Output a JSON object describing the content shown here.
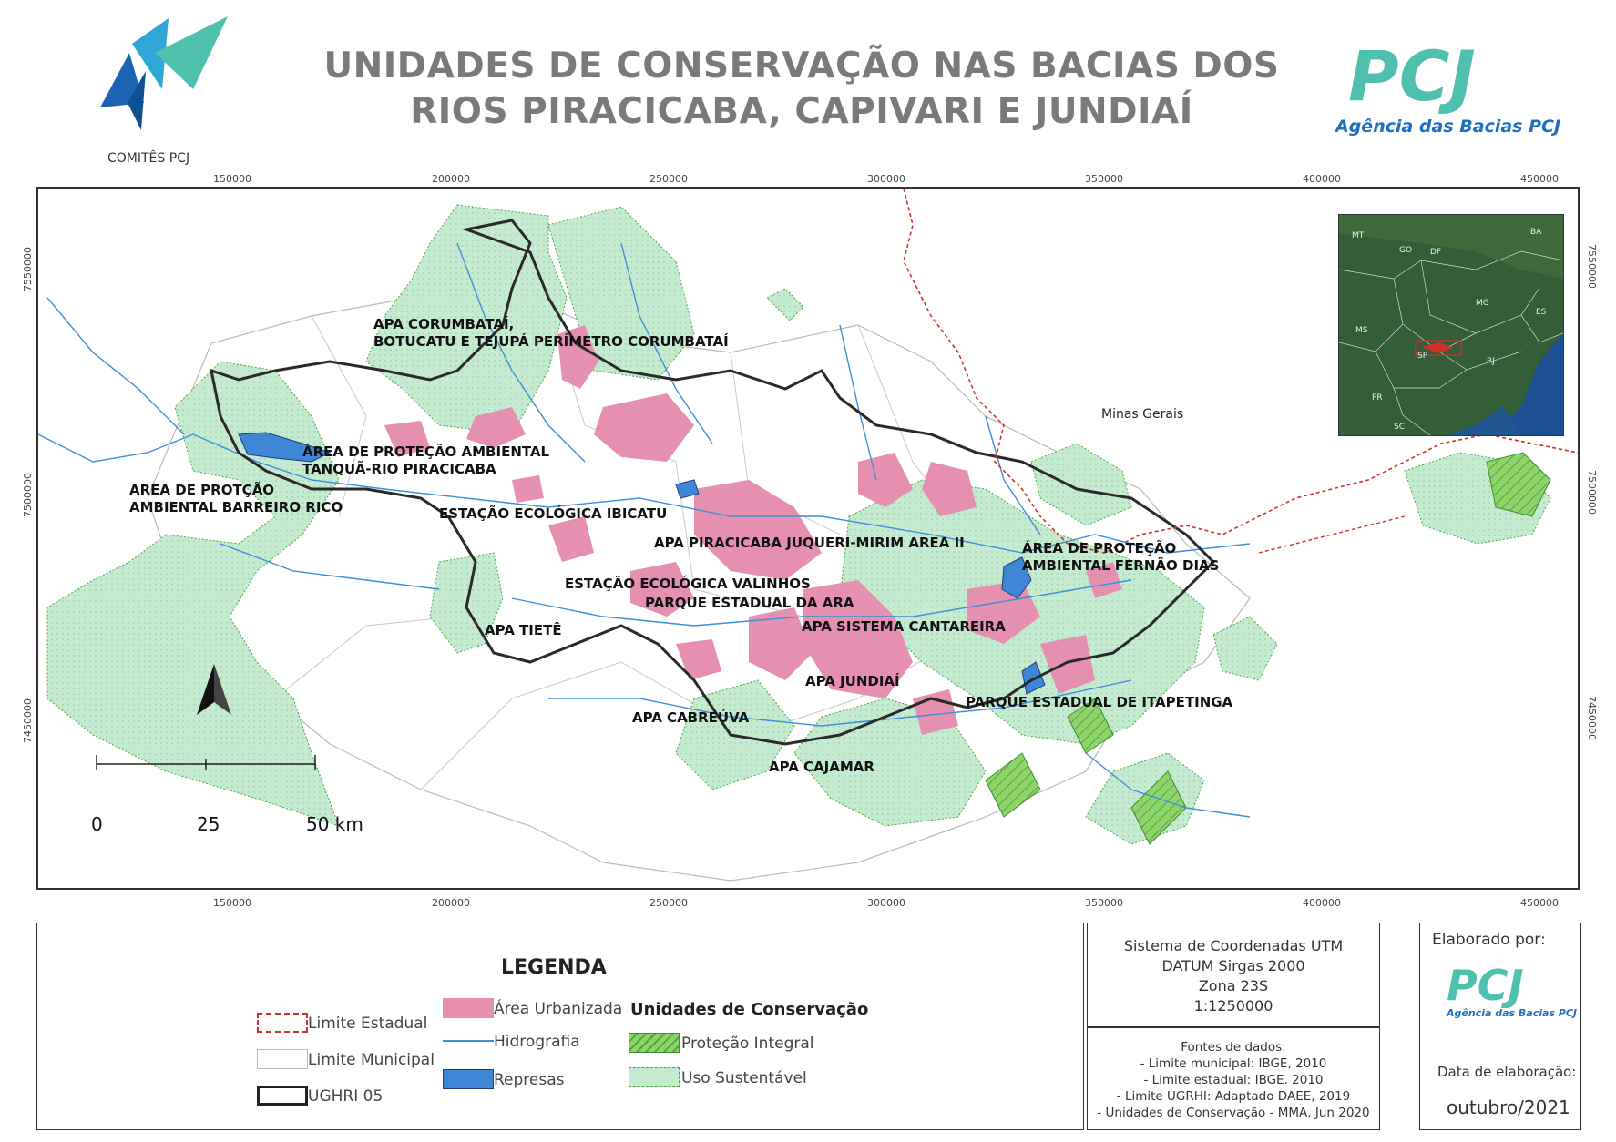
{
  "header": {
    "title_line1": "UNIDADES DE CONSERVAÇÃO NAS BACIAS DOS",
    "title_line2": "RIOS PIRACICABA, CAPIVARI E JUNDIAÍ",
    "left_logo_caption": "COMITÊS PCJ",
    "right_logo_text": "PCJ",
    "right_logo_caption": "Agência das Bacias PCJ"
  },
  "axes": {
    "x_ticks": [
      "150000",
      "200000",
      "250000",
      "300000",
      "350000",
      "400000",
      "450000"
    ],
    "y_ticks": [
      "7550000",
      "7500000",
      "7450000"
    ]
  },
  "map": {
    "uc_labels": [
      {
        "line1": "APA CORUMBATAÍ,",
        "line2": "BOTUCATU E TEJUPÁ PERÍMETRO CORUMBATAÍ"
      },
      {
        "line1": "ÁREA DE PROTEÇÃO AMBIENTAL",
        "line2": "TANQUÃ-RIO PIRACICABA"
      },
      {
        "line1": "AREA DE PROTÇÃO",
        "line2": "AMBIENTAL BARREIRO RICO"
      },
      {
        "line1": "ESTAÇÃO ECOLÓGICA IBICATU"
      },
      {
        "line1": "APA PIRACICABA JUQUERI-MIRIM AREA II"
      },
      {
        "line1": "ESTAÇÃO ECOLÓGICA VALINHOS"
      },
      {
        "line1": "PARQUE ESTADUAL DA ARA"
      },
      {
        "line1": "APA SISTEMA CANTAREIRA"
      },
      {
        "line1": "APA TIETÊ"
      },
      {
        "line1": "APA JUNDIAÍ"
      },
      {
        "line1": "PARQUE ESTADUAL DE ITAPETINGA"
      },
      {
        "line1": "APA CABREÚVA"
      },
      {
        "line1": "APA CAJAMAR"
      },
      {
        "line1": "ÁREA DE PROTEÇÃO",
        "line2": "AMBIENTAL FERNÃO DIAS"
      }
    ],
    "state_label": "Minas Gerais",
    "inset_labels": [
      "MT",
      "BA",
      "GO",
      "DF",
      "MG",
      "MS",
      "ES",
      "SP",
      "RJ",
      "PR",
      "SC"
    ],
    "north_arrow": "north-arrow",
    "scale_bar": {
      "ticks": [
        "0",
        "25",
        "50 km"
      ]
    }
  },
  "legend": {
    "title": "LEGENDA",
    "items": [
      {
        "label": "Limite Estadual"
      },
      {
        "label": "Limite Municipal"
      },
      {
        "label": "UGHRI 05"
      },
      {
        "label": "Área Urbanizada"
      },
      {
        "label": "Hidrografia"
      },
      {
        "label": "Represas"
      }
    ],
    "uc_heading": "Unidades de Conservação",
    "uc_items": [
      {
        "label": "Proteção Integral"
      },
      {
        "label": "Uso Sustentável"
      }
    ]
  },
  "coordinates_box": {
    "lines": [
      "Sistema de Coordenadas UTM",
      "DATUM Sirgas 2000",
      "Zona 23S",
      "1:1250000"
    ]
  },
  "sources_box": {
    "lines": [
      "Fontes de dados:",
      "- Limite municipal: IBGE, 2010",
      "- Limite estadual: IBGE. 2010",
      "- Limite UGRHI: Adaptado DAEE, 2019",
      "- Unidades de Conservação - MMA, Jun 2020"
    ]
  },
  "elaboration": {
    "by_label": "Elaborado por:",
    "logo_text": "PCJ",
    "logo_caption": "Agência das Bacias PCJ",
    "date_label": "Data de elaboração:",
    "date_value": "outubro/2021"
  },
  "colors": {
    "uso_sustentavel": "#bfe8c7",
    "protecao_integral": "#7dcc5f",
    "urban": "#e58fb1",
    "hydro": "#3d8fd8",
    "dam": "#3f86d6",
    "state_limit": "#d0302a",
    "ughri": "#2a2a2a"
  }
}
